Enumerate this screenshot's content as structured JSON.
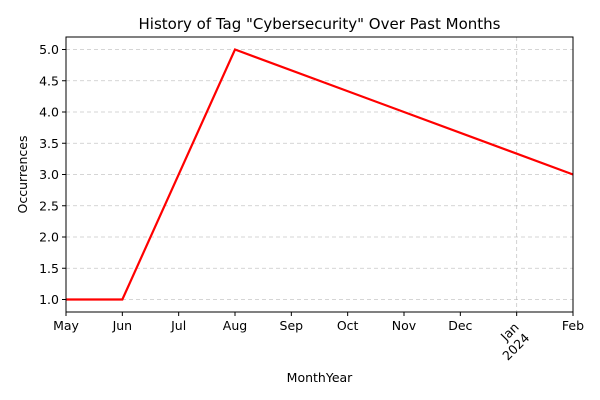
{
  "chart_data": {
    "type": "line",
    "title": "History of Tag \"Cybersecurity\" Over Past Months",
    "xlabel": "MonthYear",
    "ylabel": "Occurrences",
    "x": [
      "2023-05",
      "2023-06",
      "2023-08",
      "2024-02"
    ],
    "series": [
      {
        "values": [
          1.0,
          1.0,
          5.0,
          3.0
        ]
      }
    ],
    "xlim": [
      "2023-05",
      "2024-02"
    ],
    "x_tick_labels": [
      "May",
      "Jun",
      "Jul",
      "Aug",
      "Sep",
      "Oct",
      "Nov",
      "Dec",
      "Jan\n2024",
      "Feb"
    ],
    "ylim": [
      0.8,
      5.2
    ],
    "y_ticks": [
      1.0,
      1.5,
      2.0,
      2.5,
      3.0,
      3.5,
      4.0,
      4.5,
      5.0
    ],
    "y_tick_labels": [
      "1.0",
      "1.5",
      "2.0",
      "2.5",
      "3.0",
      "3.5",
      "4.0",
      "4.5",
      "5.0"
    ],
    "grid": true,
    "line_color": "#ff0000"
  }
}
